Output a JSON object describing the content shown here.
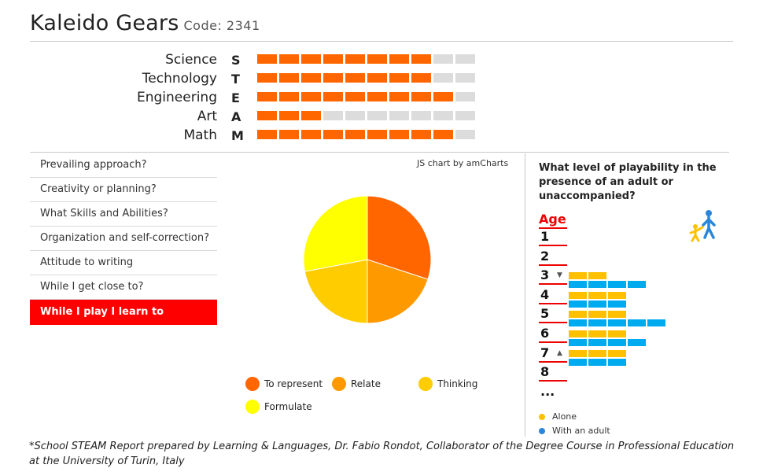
{
  "header": {
    "title": "Kaleido Gears",
    "code": "Code: 2341"
  },
  "stem": [
    {
      "name": "Science",
      "letter": "S",
      "filled": 8,
      "total": 10
    },
    {
      "name": "Technology",
      "letter": "T",
      "filled": 8,
      "total": 10
    },
    {
      "name": "Engineering",
      "letter": "E",
      "filled": 9,
      "total": 10
    },
    {
      "name": "Art",
      "letter": "A",
      "filled": 3,
      "total": 10
    },
    {
      "name": "Math",
      "letter": "M",
      "filled": 9,
      "total": 10
    }
  ],
  "menu": [
    "Prevailing approach?",
    "Creativity or planning?",
    "What Skills and Abilities?",
    "Organization and self-correction?",
    "Attitude to writing",
    "While I get close to?",
    "While I play I learn to"
  ],
  "menu_active_index": 6,
  "credit": "JS chart by amCharts",
  "chart_data": {
    "type": "pie",
    "values": [
      30,
      20,
      22,
      28
    ],
    "categories": [
      "To represent",
      "Relate",
      "Thinking",
      "Formulate"
    ],
    "colors": [
      "#ff6600",
      "#ff9900",
      "#ffcc00",
      "#ffff00"
    ]
  },
  "playability": {
    "title": "What level of playability in the presence of an adult or unaccompanied?",
    "age_label": "Age",
    "ages": [
      "1",
      "2",
      "3",
      "4",
      "5",
      "6",
      "7",
      "8",
      "..."
    ],
    "range_start_age": "3",
    "range_end_age": "7",
    "alone_levels": [
      0,
      0,
      2,
      3,
      3,
      3,
      3,
      0
    ],
    "adult_levels": [
      0,
      0,
      4,
      3,
      5,
      4,
      3,
      0
    ],
    "legend_alone": "Alone",
    "legend_adult": "With an adult",
    "alone_color": "#ffc000",
    "adult_color": "#00aaee"
  },
  "footer": "*School STEAM Report prepared by Learning & Languages, Dr. Fabio Rondot, Collaborator of the Degree Course in Professional Education at the University of Turin, Italy"
}
